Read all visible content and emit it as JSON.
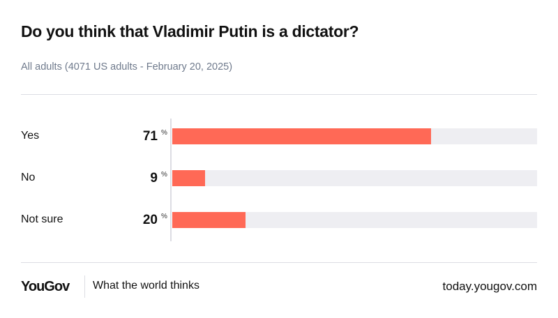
{
  "chart_data": {
    "type": "bar",
    "orientation": "horizontal",
    "title": "Do you think that Vladimir Putin is a dictator?",
    "subtitle": "All adults (4071 US adults - February 20, 2025)",
    "categories": [
      "Yes",
      "No",
      "Not sure"
    ],
    "values": [
      71,
      9,
      20
    ],
    "value_labels": [
      "71",
      "9",
      "20"
    ],
    "unit": "%",
    "xlim": [
      0,
      100
    ],
    "colors": {
      "bar": "#ff6956",
      "track": "#eeeef2"
    }
  },
  "footer": {
    "logo": "YouGov",
    "tagline": "What the world thinks",
    "url": "today.yougov.com"
  }
}
